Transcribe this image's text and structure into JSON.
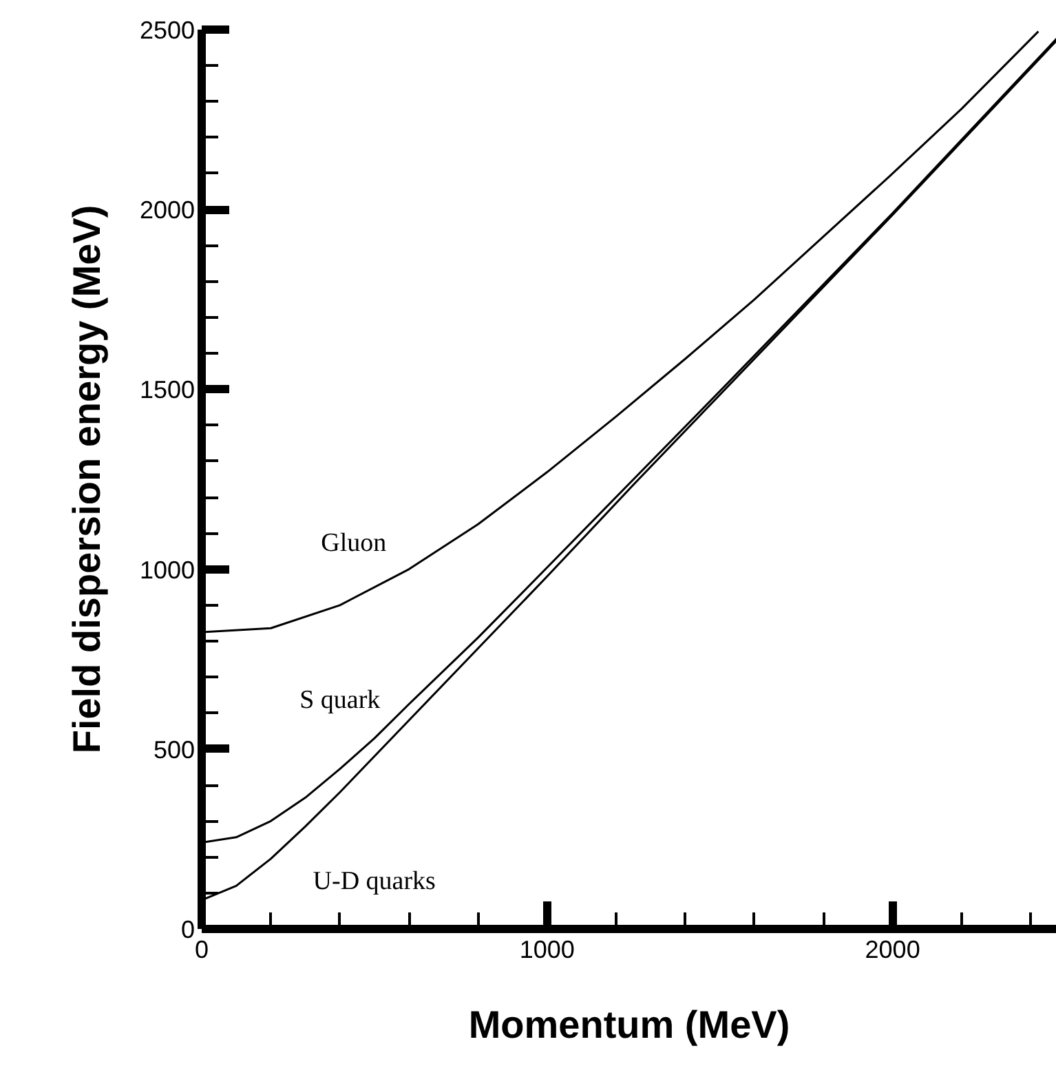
{
  "chart_data": {
    "type": "line",
    "xlabel": "Momentum (MeV)",
    "ylabel": "Field dispersion energy (MeV)",
    "xlim": [
      0,
      2475
    ],
    "ylim": [
      0,
      2500
    ],
    "xticks": [
      0,
      1000,
      2000
    ],
    "yticks": [
      0,
      500,
      1000,
      1500,
      2000,
      2500
    ],
    "grid": false,
    "legend": false,
    "marker": "none",
    "line_style": "solid",
    "series": [
      {
        "name": "Gluon",
        "color": "#000000",
        "x": [
          0,
          200,
          400,
          600,
          800,
          1000,
          1200,
          1400,
          1600,
          1800,
          2000,
          2200,
          2422
        ],
        "values": [
          825,
          836,
          900,
          1000,
          1125,
          1270,
          1425,
          1585,
          1750,
          1925,
          2100,
          2280,
          2495
        ]
      },
      {
        "name": "S quark",
        "color": "#000000",
        "x": [
          0,
          100,
          200,
          300,
          400,
          500,
          600,
          800,
          1000,
          1250,
          1500,
          2000,
          2475
        ],
        "values": [
          240,
          255,
          300,
          365,
          445,
          530,
          625,
          810,
          1005,
          1250,
          1495,
          1990,
          2475
        ]
      },
      {
        "name": "U-D quarks",
        "color": "#000000",
        "x": [
          0,
          100,
          200,
          300,
          400,
          500,
          600,
          800,
          1000,
          1250,
          1500,
          2000,
          2475
        ],
        "values": [
          80,
          120,
          195,
          285,
          380,
          480,
          580,
          780,
          980,
          1235,
          1485,
          1985,
          2470
        ]
      }
    ]
  }
}
